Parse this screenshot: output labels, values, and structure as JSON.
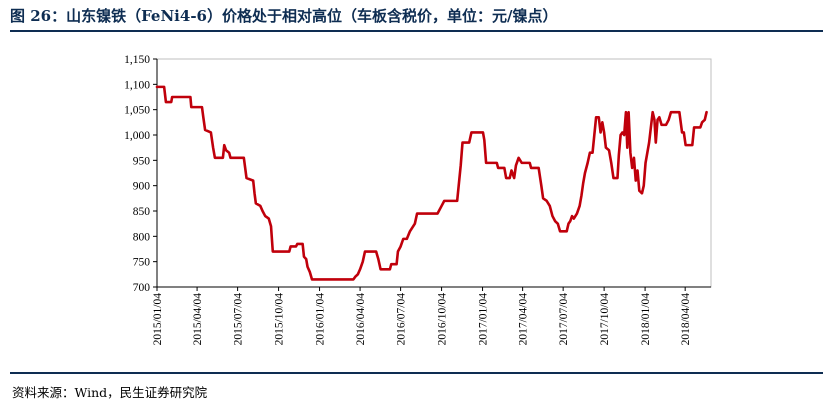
{
  "title": "图 26：山东镍铁（FeNi4-6）价格处于相对高位（车板含税价，单位：元/镍点）",
  "source": "资料来源：Wind，民生证券研究院",
  "chart_data": {
    "type": "line",
    "title": "图 26：山东镍铁（FeNi4-6）价格处于相对高位（车板含税价，单位：元/镍点）",
    "ylim": [
      700,
      1150
    ],
    "yticks": [
      "700",
      "750",
      "800",
      "850",
      "900",
      "950",
      "1,000",
      "1,050",
      "1,100",
      "1,150"
    ],
    "xlim": [
      "2015-01-04",
      "2018-06-01"
    ],
    "xticks": [
      "2015/01/04",
      "2015/04/04",
      "2015/07/04",
      "2015/10/04",
      "2016/01/04",
      "2016/04/04",
      "2016/07/04",
      "2016/10/04",
      "2017/01/04",
      "2017/04/04",
      "2017/07/04",
      "2017/10/04",
      "2018/01/04",
      "2018/04/04"
    ],
    "grid": false,
    "legend": "none",
    "series": [
      {
        "color": "#c0000b",
        "points": [
          [
            "2015-01-04",
            1095
          ],
          [
            "2015-01-20",
            1095
          ],
          [
            "2015-01-24",
            1065
          ],
          [
            "2015-02-05",
            1065
          ],
          [
            "2015-02-07",
            1075
          ],
          [
            "2015-03-20",
            1075
          ],
          [
            "2015-03-22",
            1055
          ],
          [
            "2015-04-15",
            1055
          ],
          [
            "2015-04-18",
            1035
          ],
          [
            "2015-04-22",
            1010
          ],
          [
            "2015-05-05",
            1005
          ],
          [
            "2015-05-10",
            975
          ],
          [
            "2015-05-14",
            955
          ],
          [
            "2015-06-01",
            955
          ],
          [
            "2015-06-04",
            980
          ],
          [
            "2015-06-08",
            970
          ],
          [
            "2015-06-15",
            965
          ],
          [
            "2015-06-18",
            955
          ],
          [
            "2015-07-18",
            955
          ],
          [
            "2015-07-21",
            935
          ],
          [
            "2015-07-24",
            915
          ],
          [
            "2015-08-08",
            910
          ],
          [
            "2015-08-11",
            885
          ],
          [
            "2015-08-14",
            865
          ],
          [
            "2015-08-24",
            860
          ],
          [
            "2015-08-29",
            850
          ],
          [
            "2015-09-04",
            840
          ],
          [
            "2015-09-12",
            835
          ],
          [
            "2015-09-17",
            820
          ],
          [
            "2015-09-21",
            770
          ],
          [
            "2015-10-28",
            770
          ],
          [
            "2015-10-31",
            780
          ],
          [
            "2015-11-12",
            780
          ],
          [
            "2015-11-15",
            785
          ],
          [
            "2015-11-27",
            785
          ],
          [
            "2015-11-30",
            760
          ],
          [
            "2015-12-05",
            755
          ],
          [
            "2015-12-08",
            740
          ],
          [
            "2015-12-13",
            730
          ],
          [
            "2015-12-18",
            715
          ],
          [
            "2016-03-20",
            715
          ],
          [
            "2016-03-24",
            720
          ],
          [
            "2016-03-30",
            725
          ],
          [
            "2016-04-04",
            735
          ],
          [
            "2016-04-10",
            750
          ],
          [
            "2016-04-15",
            770
          ],
          [
            "2016-05-10",
            770
          ],
          [
            "2016-05-15",
            755
          ],
          [
            "2016-05-20",
            735
          ],
          [
            "2016-06-10",
            735
          ],
          [
            "2016-06-13",
            745
          ],
          [
            "2016-06-25",
            745
          ],
          [
            "2016-06-28",
            770
          ],
          [
            "2016-07-04",
            780
          ],
          [
            "2016-07-10",
            795
          ],
          [
            "2016-07-18",
            795
          ],
          [
            "2016-07-25",
            810
          ],
          [
            "2016-08-05",
            825
          ],
          [
            "2016-08-10",
            845
          ],
          [
            "2016-09-25",
            845
          ],
          [
            "2016-10-04",
            860
          ],
          [
            "2016-10-10",
            870
          ],
          [
            "2016-11-08",
            870
          ],
          [
            "2016-11-12",
            905
          ],
          [
            "2016-11-16",
            940
          ],
          [
            "2016-11-20",
            985
          ],
          [
            "2016-12-05",
            985
          ],
          [
            "2016-12-10",
            1005
          ],
          [
            "2017-01-05",
            1005
          ],
          [
            "2017-01-08",
            990
          ],
          [
            "2017-01-12",
            945
          ],
          [
            "2017-02-05",
            945
          ],
          [
            "2017-02-08",
            935
          ],
          [
            "2017-02-22",
            935
          ],
          [
            "2017-02-26",
            915
          ],
          [
            "2017-03-06",
            915
          ],
          [
            "2017-03-10",
            930
          ],
          [
            "2017-03-16",
            915
          ],
          [
            "2017-03-20",
            940
          ],
          [
            "2017-03-26",
            955
          ],
          [
            "2017-04-02",
            945
          ],
          [
            "2017-04-20",
            945
          ],
          [
            "2017-04-23",
            935
          ],
          [
            "2017-05-10",
            935
          ],
          [
            "2017-05-16",
            900
          ],
          [
            "2017-05-20",
            875
          ],
          [
            "2017-05-28",
            870
          ],
          [
            "2017-06-04",
            860
          ],
          [
            "2017-06-10",
            840
          ],
          [
            "2017-06-16",
            830
          ],
          [
            "2017-06-22",
            825
          ],
          [
            "2017-06-27",
            810
          ],
          [
            "2017-07-12",
            810
          ],
          [
            "2017-07-16",
            825
          ],
          [
            "2017-07-20",
            830
          ],
          [
            "2017-07-24",
            840
          ],
          [
            "2017-07-28",
            835
          ],
          [
            "2017-08-04",
            845
          ],
          [
            "2017-08-10",
            860
          ],
          [
            "2017-08-14",
            880
          ],
          [
            "2017-08-18",
            905
          ],
          [
            "2017-08-22",
            925
          ],
          [
            "2017-08-28",
            945
          ],
          [
            "2017-09-02",
            965
          ],
          [
            "2017-09-08",
            965
          ],
          [
            "2017-09-12",
            1000
          ],
          [
            "2017-09-16",
            1035
          ],
          [
            "2017-09-22",
            1035
          ],
          [
            "2017-09-26",
            1005
          ],
          [
            "2017-09-30",
            1025
          ],
          [
            "2017-10-04",
            1005
          ],
          [
            "2017-10-08",
            975
          ],
          [
            "2017-10-15",
            970
          ],
          [
            "2017-10-20",
            945
          ],
          [
            "2017-10-25",
            915
          ],
          [
            "2017-11-03",
            915
          ],
          [
            "2017-11-06",
            960
          ],
          [
            "2017-11-10",
            1000
          ],
          [
            "2017-11-14",
            1005
          ],
          [
            "2017-11-18",
            1000
          ],
          [
            "2017-11-22",
            1045
          ],
          [
            "2017-11-25",
            975
          ],
          [
            "2017-11-28",
            1045
          ],
          [
            "2017-12-02",
            965
          ],
          [
            "2017-12-06",
            935
          ],
          [
            "2017-12-10",
            955
          ],
          [
            "2017-12-14",
            910
          ],
          [
            "2017-12-18",
            930
          ],
          [
            "2017-12-22",
            890
          ],
          [
            "2017-12-28",
            885
          ],
          [
            "2018-01-01",
            900
          ],
          [
            "2018-01-05",
            945
          ],
          [
            "2018-01-09",
            965
          ],
          [
            "2018-01-13",
            985
          ],
          [
            "2018-01-17",
            1015
          ],
          [
            "2018-01-21",
            1045
          ],
          [
            "2018-01-25",
            1030
          ],
          [
            "2018-01-28",
            985
          ],
          [
            "2018-02-01",
            1030
          ],
          [
            "2018-02-05",
            1035
          ],
          [
            "2018-02-10",
            1020
          ],
          [
            "2018-02-20",
            1020
          ],
          [
            "2018-02-26",
            1030
          ],
          [
            "2018-03-03",
            1045
          ],
          [
            "2018-03-22",
            1045
          ],
          [
            "2018-03-28",
            1005
          ],
          [
            "2018-04-01",
            1005
          ],
          [
            "2018-04-05",
            980
          ],
          [
            "2018-04-20",
            980
          ],
          [
            "2018-04-24",
            1015
          ],
          [
            "2018-05-08",
            1015
          ],
          [
            "2018-05-12",
            1025
          ],
          [
            "2018-05-18",
            1030
          ],
          [
            "2018-05-22",
            1045
          ]
        ]
      }
    ]
  }
}
